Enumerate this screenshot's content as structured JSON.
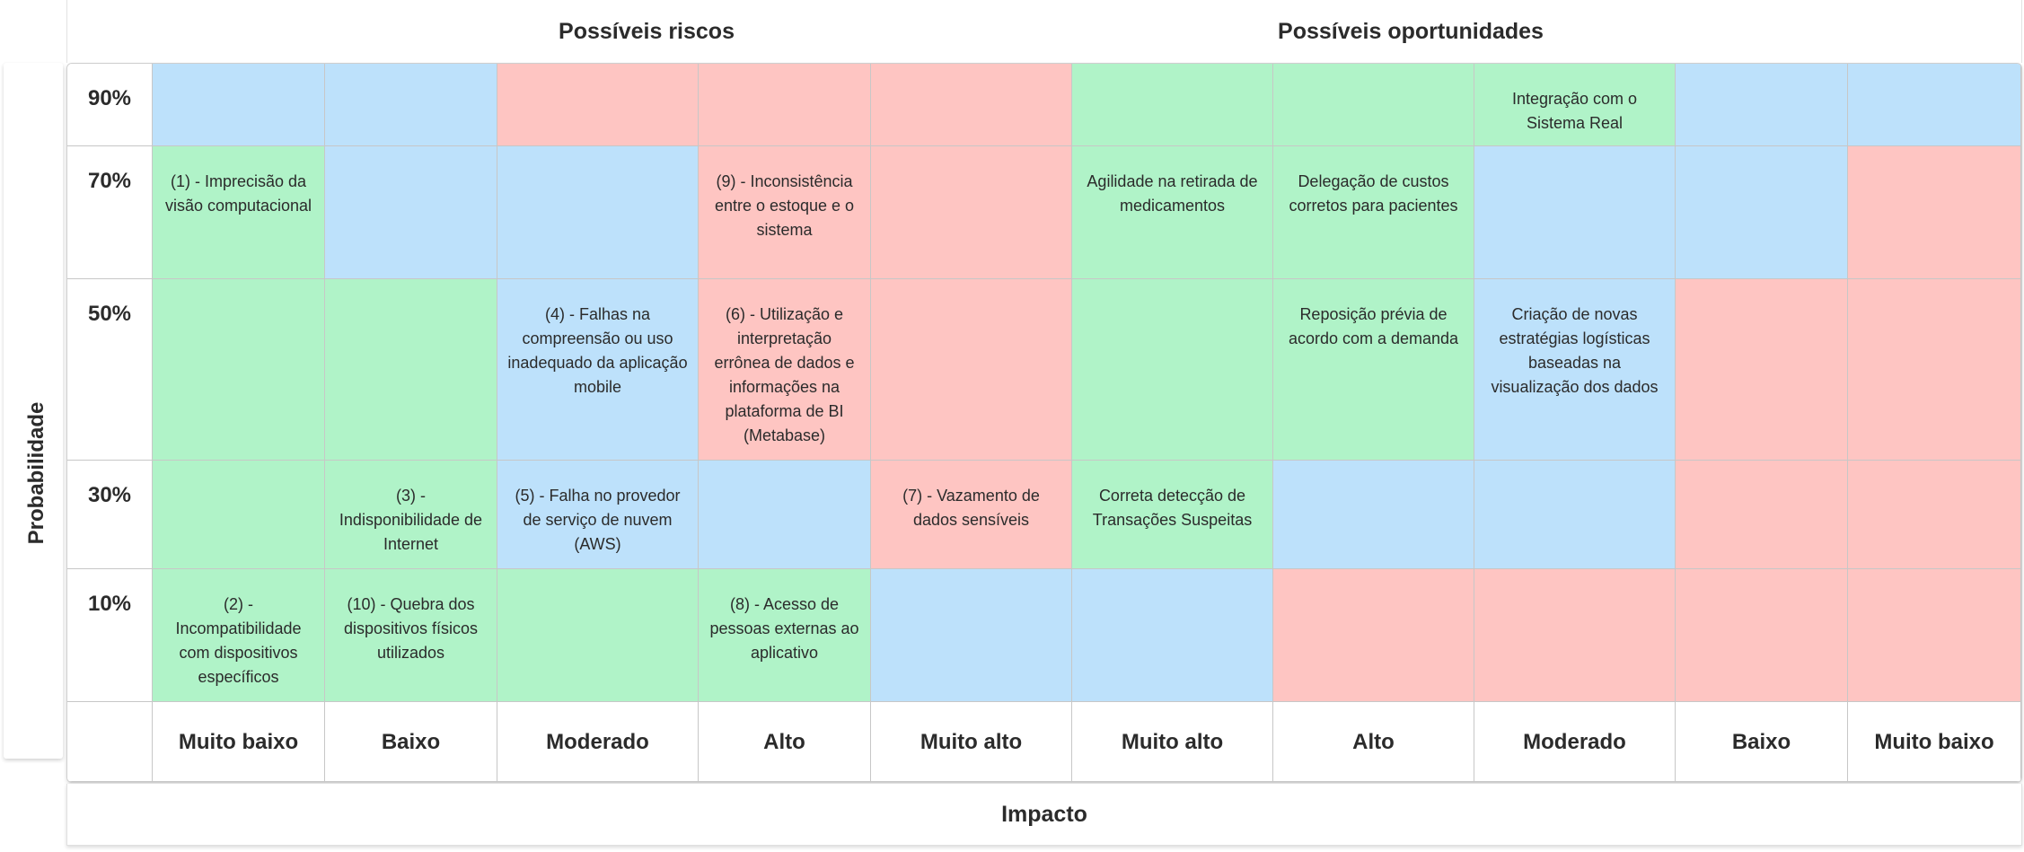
{
  "headers": {
    "risks": "Possíveis riscos",
    "opportunities": "Possíveis oportunidades"
  },
  "y_axis_label": "Probabilidade",
  "x_axis_label": "Impacto",
  "colors": {
    "green": "#b0f3c8",
    "blue": "#bde1fb",
    "red": "#fec5c2"
  },
  "impact_levels": [
    "Muito baixo",
    "Baixo",
    "Moderado",
    "Alto",
    "Muito alto",
    "Muito alto",
    "Alto",
    "Moderado",
    "Baixo",
    "Muito baixo"
  ],
  "rows": [
    {
      "probability": "90%",
      "cells": [
        {
          "color": "blue",
          "text": ""
        },
        {
          "color": "blue",
          "text": ""
        },
        {
          "color": "red",
          "text": ""
        },
        {
          "color": "red",
          "text": ""
        },
        {
          "color": "red",
          "text": ""
        },
        {
          "color": "green",
          "text": ""
        },
        {
          "color": "green",
          "text": ""
        },
        {
          "color": "green",
          "text": "Integração com o Sistema Real"
        },
        {
          "color": "blue",
          "text": ""
        },
        {
          "color": "blue",
          "text": ""
        }
      ]
    },
    {
      "probability": "70%",
      "cells": [
        {
          "color": "green",
          "text": "(1) - Imprecisão da visão computacional"
        },
        {
          "color": "blue",
          "text": ""
        },
        {
          "color": "blue",
          "text": ""
        },
        {
          "color": "red",
          "text": "(9) - Inconsistência entre o estoque e o sistema"
        },
        {
          "color": "red",
          "text": ""
        },
        {
          "color": "green",
          "text": "Agilidade na retirada de medicamentos"
        },
        {
          "color": "green",
          "text": "Delegação de custos corretos para pacientes"
        },
        {
          "color": "blue",
          "text": ""
        },
        {
          "color": "blue",
          "text": ""
        },
        {
          "color": "red",
          "text": ""
        }
      ]
    },
    {
      "probability": "50%",
      "cells": [
        {
          "color": "green",
          "text": ""
        },
        {
          "color": "green",
          "text": ""
        },
        {
          "color": "blue",
          "text": "(4) - Falhas na compreensão ou uso inadequado da aplicação mobile"
        },
        {
          "color": "red",
          "text": "(6) - Utilização e interpretação errônea de dados e informações na plataforma de BI (Metabase)"
        },
        {
          "color": "red",
          "text": ""
        },
        {
          "color": "green",
          "text": ""
        },
        {
          "color": "green",
          "text": "Reposição prévia de acordo com a demanda"
        },
        {
          "color": "blue",
          "text": "Criação de novas estratégias logísticas baseadas na visualização dos dados"
        },
        {
          "color": "red",
          "text": ""
        },
        {
          "color": "red",
          "text": ""
        }
      ]
    },
    {
      "probability": "30%",
      "cells": [
        {
          "color": "green",
          "text": ""
        },
        {
          "color": "green",
          "text": "(3) - Indisponibilidade de Internet"
        },
        {
          "color": "blue",
          "text": "(5) - Falha no provedor de serviço de nuvem (AWS)"
        },
        {
          "color": "blue",
          "text": ""
        },
        {
          "color": "red",
          "text": "(7) - Vazamento de dados sensíveis"
        },
        {
          "color": "green",
          "text": "Correta detecção de Transações Suspeitas"
        },
        {
          "color": "blue",
          "text": ""
        },
        {
          "color": "blue",
          "text": ""
        },
        {
          "color": "red",
          "text": ""
        },
        {
          "color": "red",
          "text": ""
        }
      ]
    },
    {
      "probability": "10%",
      "cells": [
        {
          "color": "green",
          "text": "(2) - Incompatibilidade com dispositivos específicos"
        },
        {
          "color": "green",
          "text": "(10) - Quebra dos dispositivos físicos utilizados"
        },
        {
          "color": "green",
          "text": ""
        },
        {
          "color": "green",
          "text": "(8) - Acesso de pessoas externas ao aplicativo"
        },
        {
          "color": "blue",
          "text": ""
        },
        {
          "color": "blue",
          "text": ""
        },
        {
          "color": "red",
          "text": ""
        },
        {
          "color": "red",
          "text": ""
        },
        {
          "color": "red",
          "text": ""
        },
        {
          "color": "red",
          "text": ""
        }
      ]
    }
  ]
}
